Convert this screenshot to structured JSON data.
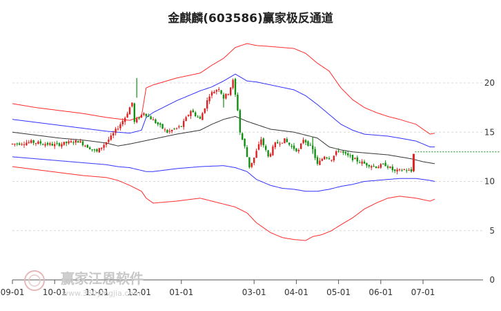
{
  "chart_data": {
    "type": "line",
    "title": "金麒麟(603586)赢家极反通道",
    "xlabel": "",
    "ylabel": "",
    "ylim": [
      0,
      25
    ],
    "grid": true,
    "y_ticks": [
      0,
      5,
      10,
      15,
      20
    ],
    "y_tick_labels": [
      "0",
      "5",
      "10",
      "15",
      "20"
    ],
    "x_tick_labels": [
      "09-01",
      "10-01",
      "11-01",
      "12-01",
      "01-01",
      "03-01",
      "04-01",
      "05-01",
      "06-01",
      "07-01"
    ],
    "x_ticks_index": [
      0,
      18,
      36,
      54,
      72,
      103,
      121,
      139,
      157,
      175
    ],
    "last_price": 12.1,
    "series": [
      {
        "color": "#ff2a2a",
        "points": [
          [
            0,
            17.9
          ],
          [
            10,
            17.5
          ],
          [
            20,
            17.2
          ],
          [
            30,
            16.9
          ],
          [
            40,
            16.5
          ],
          [
            50,
            16.2
          ],
          [
            55,
            16.6
          ],
          [
            57,
            19.5
          ],
          [
            60,
            19.8
          ],
          [
            70,
            20.5
          ],
          [
            80,
            21.0
          ],
          [
            85,
            21.8
          ],
          [
            90,
            22.5
          ],
          [
            95,
            23.6
          ],
          [
            100,
            24.0
          ],
          [
            104,
            23.8
          ],
          [
            110,
            23.7
          ],
          [
            120,
            23.5
          ],
          [
            125,
            23.0
          ],
          [
            130,
            22.0
          ],
          [
            135,
            21.2
          ],
          [
            140,
            19.5
          ],
          [
            145,
            18.3
          ],
          [
            150,
            17.5
          ],
          [
            155,
            17.0
          ],
          [
            160,
            16.6
          ],
          [
            165,
            16.3
          ],
          [
            172,
            15.8
          ],
          [
            178,
            14.8
          ],
          [
            180,
            14.9
          ]
        ]
      },
      {
        "color": "#3030ff",
        "points": [
          [
            0,
            16.3
          ],
          [
            10,
            16.0
          ],
          [
            20,
            15.7
          ],
          [
            30,
            15.4
          ],
          [
            40,
            15.1
          ],
          [
            50,
            14.9
          ],
          [
            55,
            15.2
          ],
          [
            57,
            16.5
          ],
          [
            60,
            17.0
          ],
          [
            70,
            18.2
          ],
          [
            80,
            19.2
          ],
          [
            85,
            19.6
          ],
          [
            90,
            20.2
          ],
          [
            95,
            20.9
          ],
          [
            100,
            20.2
          ],
          [
            104,
            20.1
          ],
          [
            110,
            19.8
          ],
          [
            120,
            19.3
          ],
          [
            125,
            18.7
          ],
          [
            130,
            17.8
          ],
          [
            135,
            16.8
          ],
          [
            140,
            15.8
          ],
          [
            145,
            15.2
          ],
          [
            150,
            14.8
          ],
          [
            155,
            14.7
          ],
          [
            160,
            14.6
          ],
          [
            165,
            14.4
          ],
          [
            172,
            14.1
          ],
          [
            178,
            13.5
          ],
          [
            180,
            13.5
          ]
        ]
      },
      {
        "color": "#333333",
        "points": [
          [
            0,
            15.0
          ],
          [
            10,
            14.7
          ],
          [
            20,
            14.4
          ],
          [
            30,
            14.2
          ],
          [
            40,
            13.9
          ],
          [
            45,
            13.6
          ],
          [
            50,
            13.8
          ],
          [
            60,
            14.3
          ],
          [
            70,
            14.8
          ],
          [
            80,
            15.2
          ],
          [
            85,
            15.8
          ],
          [
            90,
            16.3
          ],
          [
            95,
            16.6
          ],
          [
            100,
            16.1
          ],
          [
            105,
            15.7
          ],
          [
            110,
            15.3
          ],
          [
            120,
            15.0
          ],
          [
            125,
            14.7
          ],
          [
            130,
            14.4
          ],
          [
            135,
            13.5
          ],
          [
            140,
            13.2
          ],
          [
            145,
            13.0
          ],
          [
            150,
            12.9
          ],
          [
            155,
            12.8
          ],
          [
            160,
            12.7
          ],
          [
            165,
            12.5
          ],
          [
            170,
            12.3
          ],
          [
            175,
            12.0
          ],
          [
            180,
            11.8
          ]
        ]
      },
      {
        "color": "#3030ff",
        "points": [
          [
            0,
            12.5
          ],
          [
            10,
            12.3
          ],
          [
            20,
            12.1
          ],
          [
            30,
            11.9
          ],
          [
            40,
            11.7
          ],
          [
            45,
            11.5
          ],
          [
            50,
            11.4
          ],
          [
            57,
            11.0
          ],
          [
            60,
            11.0
          ],
          [
            70,
            11.3
          ],
          [
            80,
            11.5
          ],
          [
            90,
            11.6
          ],
          [
            95,
            11.4
          ],
          [
            100,
            11.0
          ],
          [
            104,
            10.2
          ],
          [
            110,
            9.6
          ],
          [
            115,
            9.3
          ],
          [
            120,
            9.2
          ],
          [
            125,
            9.0
          ],
          [
            130,
            9.0
          ],
          [
            135,
            9.2
          ],
          [
            140,
            9.5
          ],
          [
            145,
            9.7
          ],
          [
            150,
            10.0
          ],
          [
            155,
            10.1
          ],
          [
            160,
            10.2
          ],
          [
            165,
            10.3
          ],
          [
            172,
            10.3
          ],
          [
            178,
            10.1
          ],
          [
            180,
            10.0
          ]
        ]
      },
      {
        "color": "#ff2a2a",
        "points": [
          [
            0,
            11.5
          ],
          [
            10,
            11.2
          ],
          [
            20,
            10.9
          ],
          [
            30,
            10.6
          ],
          [
            40,
            10.4
          ],
          [
            45,
            10.1
          ],
          [
            50,
            9.6
          ],
          [
            55,
            9.0
          ],
          [
            57,
            8.3
          ],
          [
            60,
            7.8
          ],
          [
            70,
            8.0
          ],
          [
            80,
            8.3
          ],
          [
            85,
            8.0
          ],
          [
            90,
            7.7
          ],
          [
            95,
            7.4
          ],
          [
            100,
            6.8
          ],
          [
            104,
            5.8
          ],
          [
            110,
            4.8
          ],
          [
            115,
            4.3
          ],
          [
            120,
            4.1
          ],
          [
            125,
            4.0
          ],
          [
            128,
            4.4
          ],
          [
            132,
            4.6
          ],
          [
            136,
            5.0
          ],
          [
            140,
            5.6
          ],
          [
            145,
            6.3
          ],
          [
            150,
            7.2
          ],
          [
            155,
            7.8
          ],
          [
            160,
            8.3
          ],
          [
            165,
            8.5
          ],
          [
            172,
            8.3
          ],
          [
            178,
            8.0
          ],
          [
            180,
            8.2
          ]
        ]
      }
    ],
    "candles": {
      "up_color": "#e02020",
      "down_color": "#109010",
      "price_path": [
        [
          0,
          13.8
        ],
        [
          8,
          14.0
        ],
        [
          18,
          13.7
        ],
        [
          28,
          14.1
        ],
        [
          36,
          13.0
        ],
        [
          42,
          14.5
        ],
        [
          48,
          16.5
        ],
        [
          51,
          18.0
        ],
        [
          52,
          16.0
        ],
        [
          56,
          17.0
        ],
        [
          60,
          16.2
        ],
        [
          66,
          15.0
        ],
        [
          72,
          15.6
        ],
        [
          76,
          17.2
        ],
        [
          80,
          16.3
        ],
        [
          84,
          18.8
        ],
        [
          88,
          19.5
        ],
        [
          90,
          18.5
        ],
        [
          92,
          19.0
        ],
        [
          94,
          20.2
        ],
        [
          96,
          17.3
        ],
        [
          97,
          15.0
        ],
        [
          99,
          13.5
        ],
        [
          101,
          11.5
        ],
        [
          103,
          12.4
        ],
        [
          106,
          14.3
        ],
        [
          109,
          12.5
        ],
        [
          112,
          13.8
        ],
        [
          116,
          14.2
        ],
        [
          119,
          13.5
        ],
        [
          122,
          13.1
        ],
        [
          124,
          14.3
        ],
        [
          126,
          13.8
        ],
        [
          128,
          13.2
        ],
        [
          130,
          11.7
        ],
        [
          133,
          12.6
        ],
        [
          136,
          12.3
        ],
        [
          139,
          13.2
        ],
        [
          142,
          12.7
        ],
        [
          146,
          12.2
        ],
        [
          150,
          11.8
        ],
        [
          155,
          11.5
        ],
        [
          159,
          11.7
        ],
        [
          163,
          11.0
        ],
        [
          167,
          11.2
        ],
        [
          170,
          11.0
        ],
        [
          171,
          12.1
        ]
      ],
      "spikes": [
        [
          53,
          20.5,
          18.5
        ],
        [
          90,
          19.0,
          17.5
        ],
        [
          128,
          14.5,
          12.8
        ]
      ]
    }
  },
  "watermark": {
    "text": "赢家江恩软件",
    "sub": "www.360yingjia.com"
  }
}
